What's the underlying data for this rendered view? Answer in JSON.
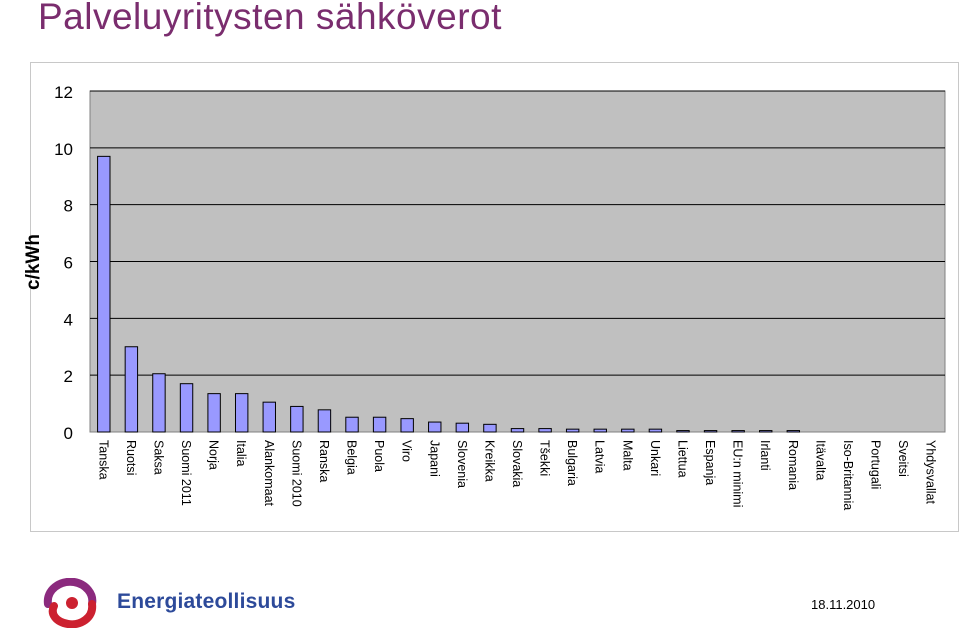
{
  "slide": {
    "title": "Palveluyritysten sähköverot",
    "date": "18.11.2010",
    "logo_text": "Energiateollisuus"
  },
  "colors": {
    "title": "#7a2d6e",
    "bar_fill": "#9999ff",
    "plot_bg": "#c0c0c0",
    "logo_blue": "#2d4a9a",
    "logo_red": "#cc2130",
    "logo_purple": "#8b2a7e"
  },
  "chart_data": {
    "type": "bar",
    "ylabel": "c/kWh",
    "ylim": [
      0,
      12
    ],
    "yticks": [
      0,
      2,
      4,
      6,
      8,
      10,
      12
    ],
    "grid": true,
    "categories": [
      "Tanska",
      "Ruotsi",
      "Saksa",
      "Suomi 2011",
      "Norja",
      "Italia",
      "Alankomaat",
      "Suomi 2010",
      "Ranska",
      "Belgia",
      "Puola",
      "Viro",
      "Japani",
      "Slovenia",
      "Kreikka",
      "Slovakia",
      "Tšekki",
      "Bulgaria",
      "Latvia",
      "Malta",
      "Unkari",
      "Liettua",
      "Espanja",
      "EU:n minimi",
      "Irlanti",
      "Romania",
      "Itävalta",
      "Iso-Britannia",
      "Portugali",
      "Sveitsi",
      "Yhdysvallat"
    ],
    "values": [
      9.7,
      3.0,
      2.05,
      1.7,
      1.35,
      1.35,
      1.05,
      0.9,
      0.78,
      0.52,
      0.52,
      0.47,
      0.35,
      0.31,
      0.27,
      0.12,
      0.12,
      0.1,
      0.1,
      0.1,
      0.1,
      0.05,
      0.05,
      0.05,
      0.05,
      0.05,
      0,
      0,
      0,
      0,
      0
    ]
  }
}
